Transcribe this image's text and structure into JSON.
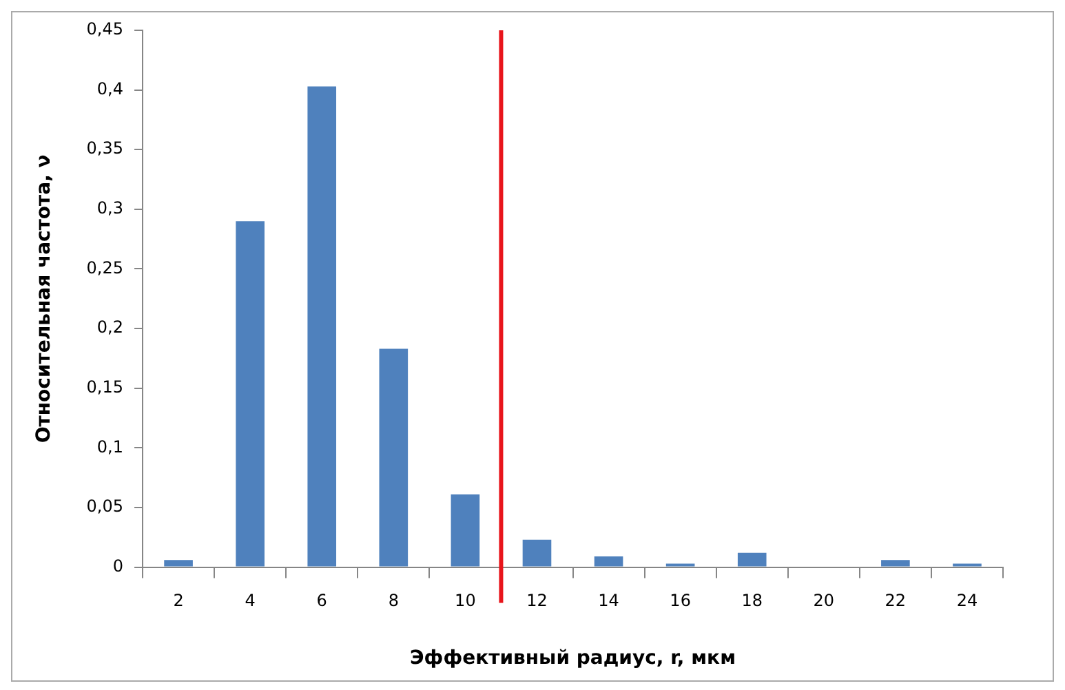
{
  "chart_data": {
    "type": "bar",
    "xlabel": "Эффективный радиус, r, мкм",
    "ylabel": "Относительная частота, ν",
    "x": [
      2,
      4,
      6,
      8,
      10,
      12,
      14,
      16,
      18,
      20,
      22,
      24
    ],
    "values": [
      0.006,
      0.29,
      0.403,
      0.183,
      0.061,
      0.023,
      0.009,
      0.003,
      0.012,
      0,
      0.006,
      0.003
    ],
    "color": "#4f81bd",
    "xlim": [
      1,
      25
    ],
    "xticks": [
      2,
      4,
      6,
      8,
      10,
      12,
      14,
      16,
      18,
      20,
      22,
      24
    ],
    "ylim": [
      0,
      0.45
    ],
    "yticks": [
      0,
      {
        "value": 0.05,
        "label": "0,05"
      },
      {
        "value": 0.1,
        "label": "0,1"
      },
      {
        "value": 0.15,
        "label": "0,15"
      },
      {
        "value": 0.2,
        "label": "0,2"
      },
      {
        "value": 0.25,
        "label": "0,25"
      },
      {
        "value": 0.3,
        "label": "0,3"
      },
      {
        "value": 0.35,
        "label": "0,35"
      },
      {
        "value": 0.4,
        "label": "0,4"
      },
      {
        "value": 0.45,
        "label": "0,45"
      }
    ],
    "ref_lines": [
      {
        "axis": "x",
        "value": 11,
        "color": "#e8141b"
      }
    ],
    "grid": false,
    "legend": false
  }
}
